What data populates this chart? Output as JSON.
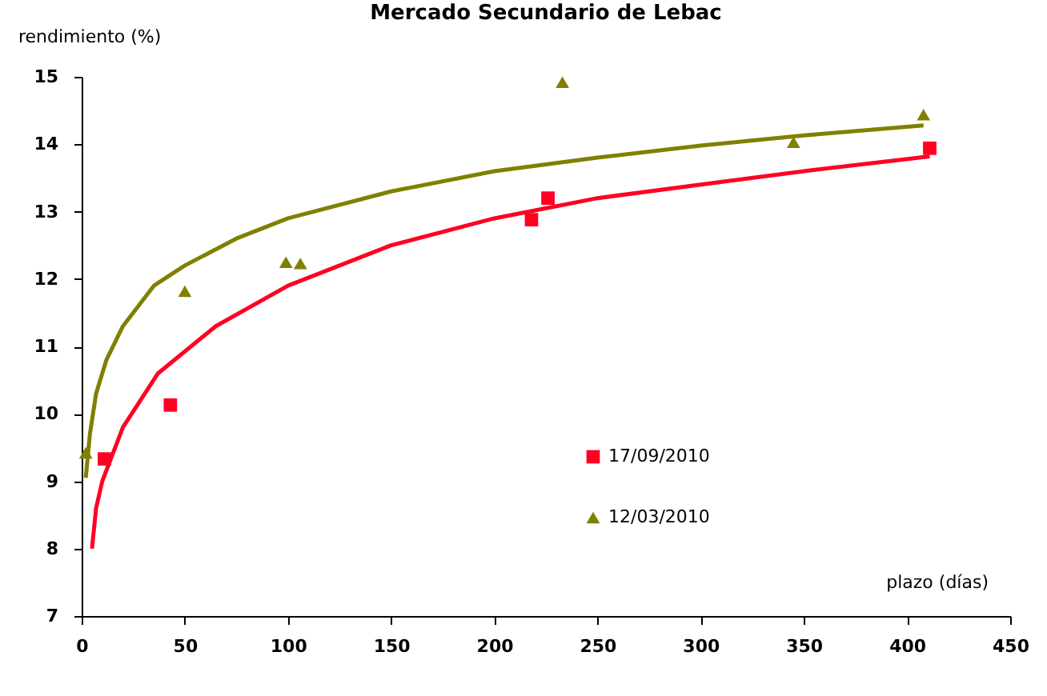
{
  "chart_data": {
    "type": "scatter",
    "title": "Mercado Secundario de Lebac",
    "xlabel": "plazo (días)",
    "ylabel": "rendimiento (%)",
    "xlim": [
      0,
      450
    ],
    "xticks": [
      0,
      50,
      100,
      150,
      200,
      250,
      300,
      350,
      400,
      450
    ],
    "ylim": [
      7,
      15
    ],
    "yticks": [
      7,
      8,
      9,
      10,
      11,
      12,
      13,
      14,
      15
    ],
    "grid": false,
    "legend": "bottom",
    "series": [
      {
        "name": "17/09/2010",
        "marker": "square",
        "color": "#ff0022",
        "x": [
          11,
          43,
          218,
          226,
          411
        ],
        "values": [
          9.33,
          10.13,
          12.88,
          13.2,
          13.94
        ]
      },
      {
        "name": "12/03/2010",
        "marker": "triangle",
        "color": "#808000",
        "x": [
          2,
          50,
          99,
          106,
          233,
          345,
          408
        ],
        "values": [
          9.42,
          11.82,
          12.25,
          12.23,
          14.92,
          14.03,
          14.44
        ]
      },
      {
        "type": "line",
        "color": "#808000",
        "x": [
          2,
          4,
          7,
          12,
          20,
          35,
          50,
          75,
          100,
          150,
          200,
          250,
          300,
          350,
          408
        ],
        "values": [
          9.05,
          9.7,
          10.3,
          10.8,
          11.3,
          11.9,
          12.2,
          12.6,
          12.9,
          13.3,
          13.6,
          13.8,
          13.98,
          14.13,
          14.28
        ]
      },
      {
        "type": "line",
        "color": "#ff0022",
        "x": [
          5,
          7,
          10,
          20,
          37,
          65,
          100,
          150,
          200,
          250,
          300,
          350,
          411
        ],
        "values": [
          8.0,
          8.6,
          9.0,
          9.8,
          10.6,
          11.3,
          11.9,
          12.5,
          12.9,
          13.2,
          13.4,
          13.6,
          13.82
        ]
      }
    ]
  }
}
